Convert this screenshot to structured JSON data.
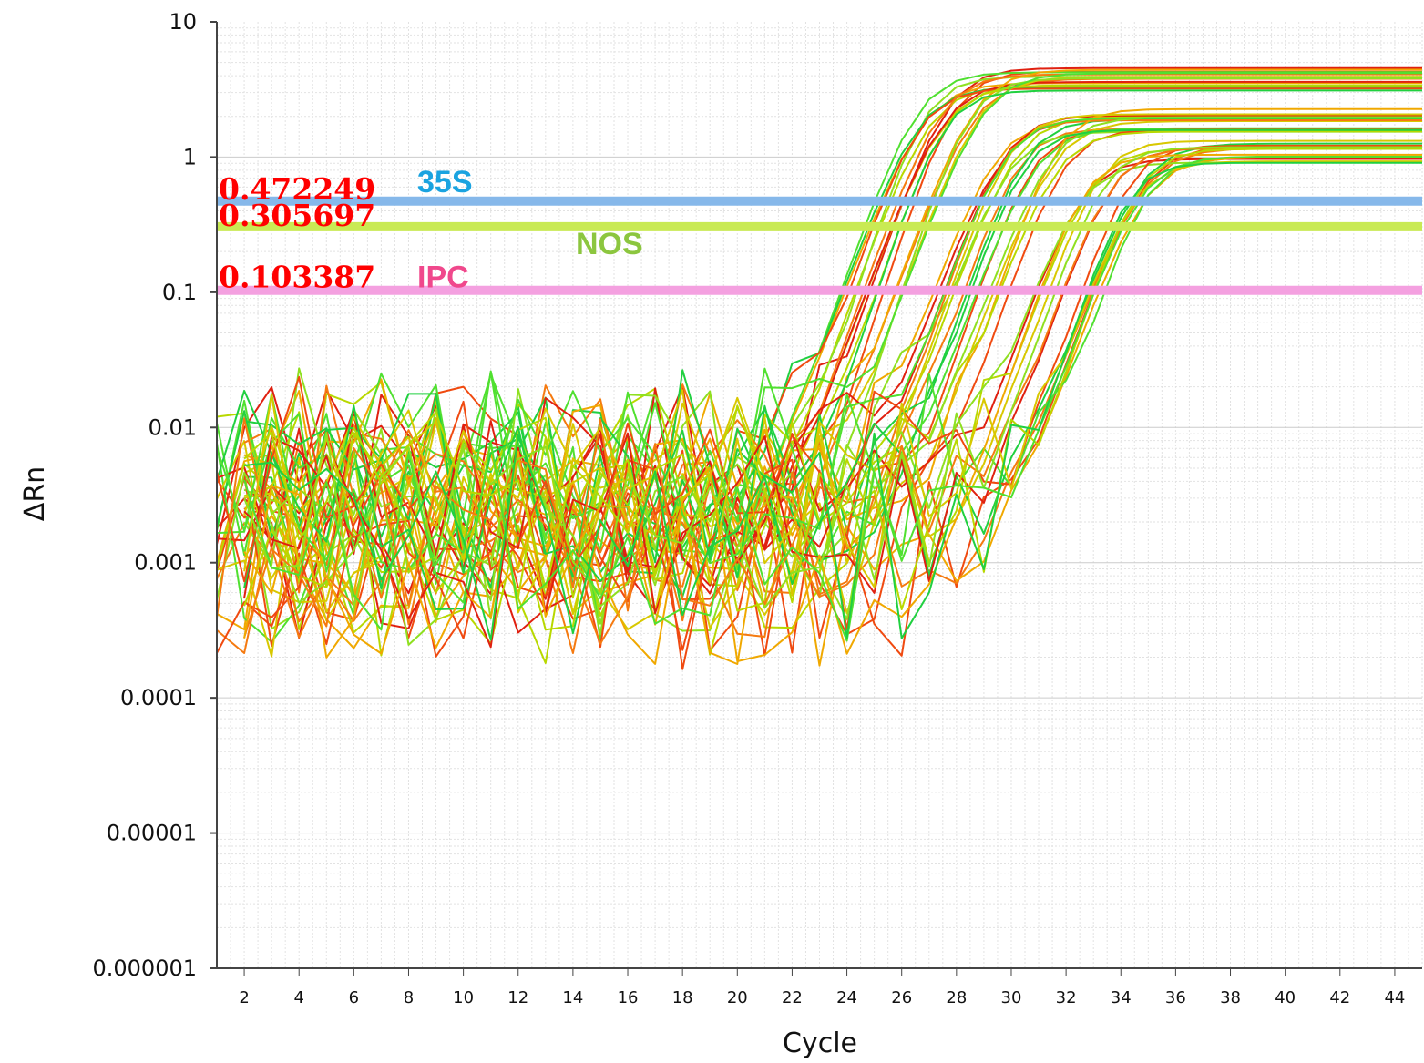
{
  "chart_data": {
    "type": "line",
    "xlabel": "Cycle",
    "ylabel": "ΔRn",
    "y_scale": "log",
    "ylim": [
      1e-06,
      10
    ],
    "xlim": [
      1,
      45
    ],
    "y_ticks": [
      "10",
      "1",
      "0.1",
      "0.01",
      "0.001",
      "0.0001",
      "0.00001",
      "0.000001"
    ],
    "x_ticks": [
      "2",
      "4",
      "6",
      "8",
      "10",
      "12",
      "14",
      "16",
      "18",
      "20",
      "22",
      "24",
      "26",
      "28",
      "30",
      "32",
      "34",
      "36",
      "38",
      "40",
      "42",
      "44"
    ],
    "grid": true,
    "thresholds": [
      {
        "value_label": "0.472249",
        "name": "35S",
        "y": 0.472249,
        "line_color": "#86b8ea",
        "name_color": "#1aa3e0"
      },
      {
        "value_label": "0.305697",
        "name": "NOS",
        "y": 0.305697,
        "line_color": "#c9ea54",
        "name_color": "#8cc63f"
      },
      {
        "value_label": "0.103387",
        "name": "IPC",
        "y": 0.103387,
        "line_color": "#f4a0e0",
        "name_color": "#f0488c"
      }
    ],
    "amplification_groups": [
      {
        "ct_approx": 25.5,
        "plateau": 3.8,
        "curves": 18
      },
      {
        "ct_approx": 28.5,
        "plateau": 1.9,
        "curves": 18
      },
      {
        "ct_approx": 31.5,
        "plateau": 1.1,
        "curves": 18
      }
    ],
    "series_colors": [
      "#e02010",
      "#f04a10",
      "#f57a10",
      "#f0a800",
      "#d8c800",
      "#b8d800",
      "#8fe020",
      "#50e030",
      "#20d040"
    ]
  }
}
